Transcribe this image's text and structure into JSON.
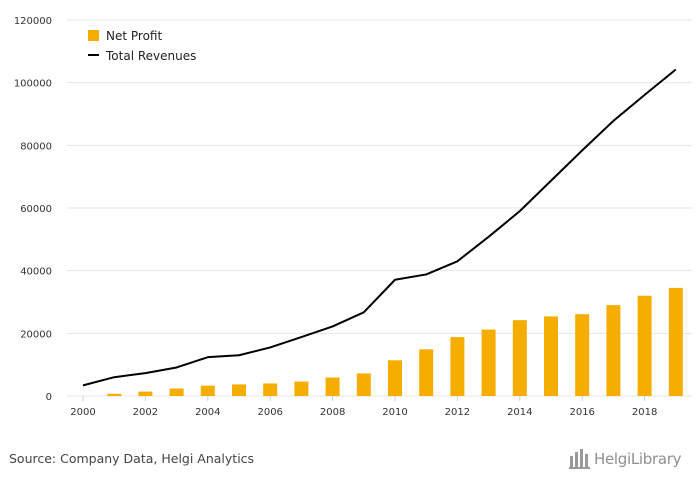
{
  "chart_data": {
    "type": "bar",
    "title": "",
    "xlabel": "",
    "ylabel": "",
    "ylim": [
      0,
      120000
    ],
    "y_ticks": [
      0,
      20000,
      40000,
      60000,
      80000,
      100000,
      120000
    ],
    "x_ticks": [
      2000,
      2002,
      2004,
      2006,
      2008,
      2010,
      2012,
      2014,
      2016,
      2018
    ],
    "x": [
      2000,
      2001,
      2002,
      2003,
      2004,
      2005,
      2006,
      2007,
      2008,
      2009,
      2010,
      2011,
      2012,
      2013,
      2014,
      2015,
      2016,
      2017,
      2018,
      2019
    ],
    "grid": true,
    "legend_position": "top-left",
    "series": [
      {
        "name": "Net Profit",
        "type": "bar",
        "color": "#f5ad00",
        "values": [
          0,
          700,
          1400,
          2400,
          3300,
          3700,
          4000,
          4600,
          5900,
          7200,
          11400,
          14900,
          18800,
          21200,
          24200,
          25400,
          26100,
          29000,
          32000,
          34500
        ]
      },
      {
        "name": "Total Revenues",
        "type": "line",
        "color": "#000000",
        "values": [
          3400,
          6000,
          7300,
          9100,
          12400,
          13000,
          15500,
          18800,
          22200,
          26700,
          37100,
          38800,
          43000,
          50800,
          59000,
          68700,
          78400,
          87800,
          96100,
          104200
        ]
      }
    ]
  },
  "footer": {
    "source": "Source: Company Data, Helgi Analytics",
    "brand": "HelgiLibrary"
  },
  "colors": {
    "bar": "#f5ad00",
    "line": "#000000",
    "grid": "#e4e4e4",
    "brand": "#8f8f8f"
  },
  "icons": {
    "brand_logo": "helgi-library-logo-icon"
  }
}
